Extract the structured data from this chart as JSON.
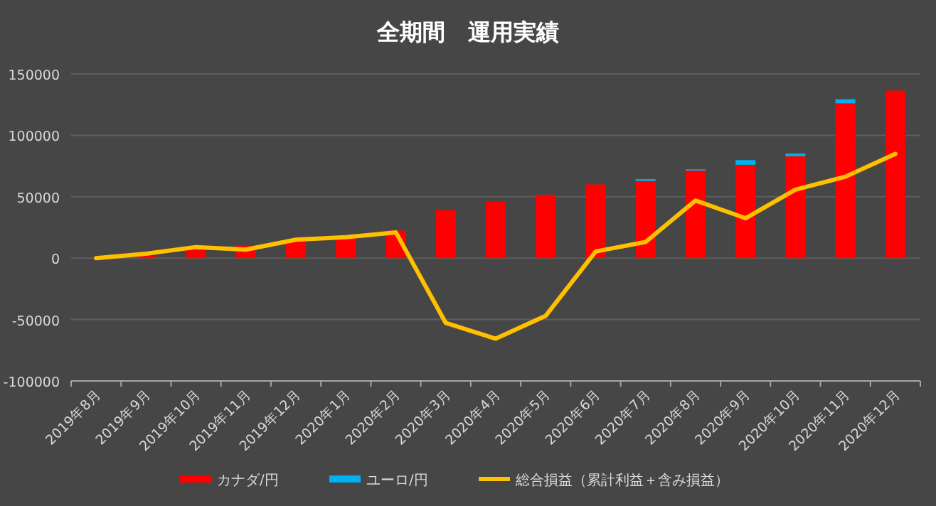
{
  "chart_data": {
    "type": "bar",
    "title": "全期間　運用実績",
    "stacked": true,
    "legend": "bottom",
    "grid": "y",
    "categories": [
      "2019年8月",
      "2019年9月",
      "2019年10月",
      "2019年11月",
      "2019年12月",
      "2020年1月",
      "2020年2月",
      "2020年3月",
      "2020年4月",
      "2020年5月",
      "2020年6月",
      "2020年7月",
      "2020年8月",
      "2020年9月",
      "2020年10月",
      "2020年11月",
      "2020年12月"
    ],
    "ylim": [
      -100000,
      150000
    ],
    "yticks": [
      -100000,
      -50000,
      0,
      50000,
      100000,
      150000
    ],
    "series": [
      {
        "name": "カナダ/円",
        "color": "#ff0000",
        "values": [
          null,
          2000,
          9000,
          10500,
          15000,
          17800,
          22400,
          39100,
          46000,
          51500,
          60000,
          62800,
          71300,
          76000,
          82900,
          126000,
          136400
        ]
      },
      {
        "name": "ユーロ/円",
        "color": "#00b0f0",
        "values": [
          null,
          null,
          null,
          null,
          null,
          null,
          null,
          null,
          null,
          null,
          null,
          1500,
          1000,
          3800,
          2300,
          3400,
          null
        ]
      },
      {
        "name": "総合損益（累計利益＋含み損益）",
        "color": "#ffc000",
        "type": "line",
        "values": [
          0,
          3600,
          9000,
          6900,
          15000,
          17000,
          21000,
          -52800,
          -65600,
          -47000,
          5400,
          13100,
          46900,
          32500,
          55800,
          66300,
          84900
        ]
      }
    ]
  }
}
